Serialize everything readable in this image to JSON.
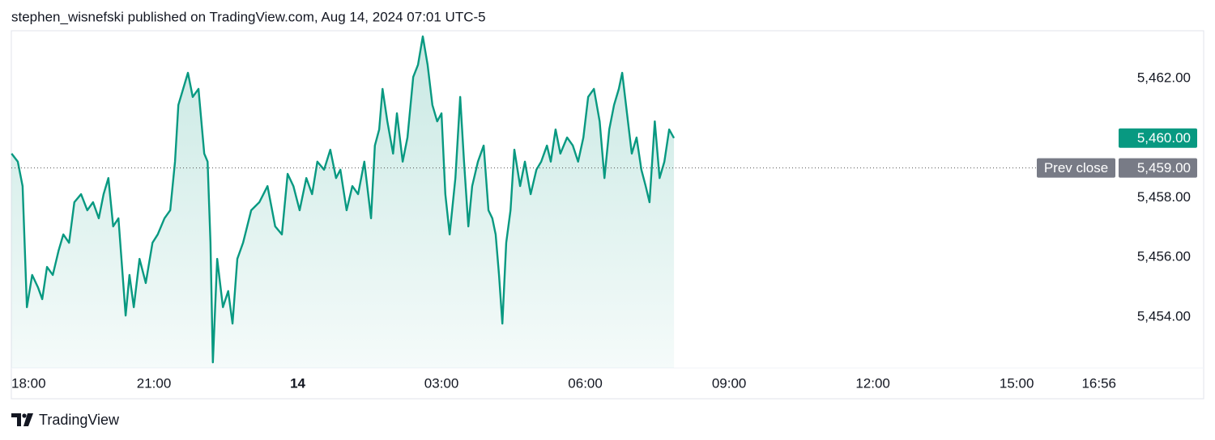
{
  "header": "stephen_wisnefski published on TradingView.com, Aug 14, 2024 07:01 UTC-5",
  "brand": "TradingView",
  "chart_data": {
    "type": "area",
    "color": "#089981",
    "x": [
      18.03,
      18.16,
      18.26,
      18.35,
      18.46,
      18.58,
      18.67,
      18.77,
      18.89,
      19.01,
      19.11,
      19.23,
      19.34,
      19.48,
      19.61,
      19.73,
      19.85,
      19.95,
      20.05,
      20.15,
      20.26,
      20.36,
      20.41,
      20.49,
      20.58,
      20.7,
      20.83,
      20.97,
      21.08,
      21.22,
      21.34,
      21.44,
      21.51,
      21.61,
      21.71,
      21.81,
      21.93,
      22.05,
      22.12,
      22.18,
      22.23,
      22.32,
      22.44,
      22.55,
      22.64,
      22.74,
      22.86,
      23.03,
      23.2,
      23.37,
      23.53,
      23.67,
      23.79,
      23.91,
      24.04,
      24.18,
      24.3,
      24.41,
      24.55,
      24.68,
      24.8,
      24.89,
      25.02,
      25.14,
      25.26,
      25.39,
      25.53,
      25.61,
      25.7,
      25.77,
      25.87,
      25.99,
      26.07,
      26.19,
      26.29,
      26.41,
      26.51,
      26.61,
      26.71,
      26.81,
      26.91,
      27.0,
      27.08,
      27.17,
      27.29,
      27.39,
      27.47,
      27.56,
      27.64,
      27.76,
      27.88,
      27.98,
      28.06,
      28.13,
      28.2,
      28.27,
      28.35,
      28.44,
      28.52,
      28.64,
      28.74,
      28.86,
      28.98,
      29.08,
      29.2,
      29.28,
      29.38,
      29.48,
      29.62,
      29.74,
      29.85,
      29.96,
      30.06,
      30.18,
      30.3,
      30.4,
      30.5,
      30.6,
      30.7,
      30.77,
      30.87,
      30.97,
      31.07,
      31.17,
      31.26,
      31.34,
      31.45,
      31.55,
      31.65,
      31.75,
      31.85
    ],
    "values": [
      5459.48,
      5459.21,
      5458.39,
      5454.33,
      5455.41,
      5455.0,
      5454.6,
      5455.68,
      5455.41,
      5456.22,
      5456.77,
      5456.49,
      5457.85,
      5458.12,
      5457.58,
      5457.85,
      5457.31,
      5458.12,
      5458.66,
      5457.04,
      5457.31,
      5455.14,
      5454.05,
      5455.41,
      5454.33,
      5455.95,
      5455.14,
      5456.49,
      5456.77,
      5457.31,
      5457.58,
      5459.21,
      5461.11,
      5461.65,
      5462.19,
      5461.38,
      5461.65,
      5459.48,
      5459.21,
      5456.49,
      5452.48,
      5455.95,
      5454.33,
      5454.87,
      5453.78,
      5455.95,
      5456.49,
      5457.58,
      5457.85,
      5458.39,
      5457.04,
      5456.77,
      5458.8,
      5458.39,
      5457.58,
      5458.66,
      5458.12,
      5459.21,
      5458.94,
      5459.61,
      5458.66,
      5458.94,
      5457.58,
      5458.39,
      5458.12,
      5459.21,
      5457.31,
      5459.75,
      5460.29,
      5461.65,
      5460.56,
      5459.48,
      5460.83,
      5459.21,
      5460.02,
      5462.05,
      5462.46,
      5463.41,
      5462.46,
      5461.11,
      5460.56,
      5460.83,
      5458.12,
      5456.77,
      5458.66,
      5461.38,
      5459.21,
      5457.04,
      5458.39,
      5459.21,
      5459.75,
      5457.58,
      5457.31,
      5456.77,
      5455.41,
      5453.78,
      5456.49,
      5457.58,
      5459.61,
      5458.39,
      5459.21,
      5458.12,
      5458.94,
      5459.21,
      5459.75,
      5459.21,
      5460.29,
      5459.48,
      5460.02,
      5459.75,
      5459.21,
      5460.02,
      5461.38,
      5461.65,
      5460.56,
      5458.66,
      5460.29,
      5461.11,
      5461.65,
      5462.19,
      5460.83,
      5459.48,
      5460.02,
      5458.94,
      5458.39,
      5457.85,
      5460.56,
      5458.66,
      5459.21,
      5460.29,
      5460.0
    ],
    "xlim": [
      18,
      41.11
    ],
    "ylim": [
      5452.29,
      5463.6
    ],
    "xticks": [
      {
        "value": 18,
        "label": "18:00"
      },
      {
        "value": 21,
        "label": "21:00"
      },
      {
        "value": 24,
        "label": "14"
      },
      {
        "value": 27,
        "label": "03:00"
      },
      {
        "value": 30,
        "label": "06:00"
      },
      {
        "value": 33,
        "label": "09:00"
      },
      {
        "value": 36,
        "label": "12:00"
      },
      {
        "value": 39,
        "label": "15:00"
      },
      {
        "value": 40.93,
        "label": "16:56"
      }
    ],
    "yticks": [
      {
        "value": 5454,
        "label": "5,454.00"
      },
      {
        "value": 5456,
        "label": "5,456.00"
      },
      {
        "value": 5458,
        "label": "5,458.00"
      },
      {
        "value": 5462,
        "label": "5,462.00"
      }
    ],
    "prev_close_label": "Prev close",
    "prev_close": {
      "value": 5459,
      "label": "5,459.00"
    },
    "last_price": {
      "value": 5460,
      "label": "5,460.00"
    }
  }
}
